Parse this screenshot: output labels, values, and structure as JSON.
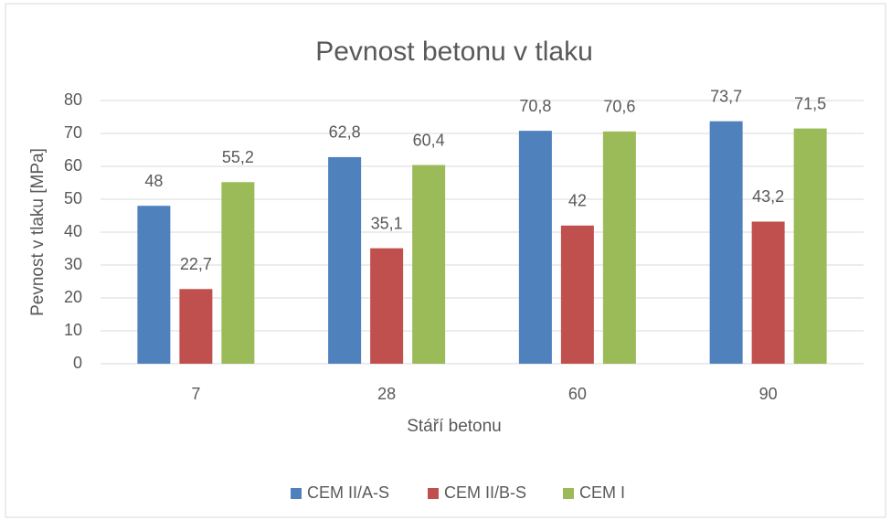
{
  "chart_data": {
    "type": "bar",
    "title": "Pevnost betonu v tlaku",
    "x_label": "Stáří betonu",
    "y_label": "Pevnost v tlaku [MPa]",
    "categories": [
      "7",
      "28",
      "60",
      "90"
    ],
    "series": [
      {
        "name": "CEM II/A-S",
        "color": "#4f81bd",
        "values": [
          48,
          62.8,
          70.8,
          73.7
        ],
        "value_labels": [
          "48",
          "62,8",
          "70,8",
          "73,7"
        ]
      },
      {
        "name": "CEM II/B-S",
        "color": "#c0504d",
        "values": [
          22.7,
          35.1,
          42,
          43.2
        ],
        "value_labels": [
          "22,7",
          "35,1",
          "42",
          "43,2"
        ]
      },
      {
        "name": "CEM I",
        "color": "#9bbb59",
        "values": [
          55.2,
          60.4,
          70.6,
          71.5
        ],
        "value_labels": [
          "55,2",
          "60,4",
          "70,6",
          "71,5"
        ]
      }
    ],
    "ylim": [
      0,
      80
    ],
    "yticks": [
      0,
      10,
      20,
      30,
      40,
      50,
      60,
      70,
      80
    ],
    "grid": true,
    "legend": "bottom"
  }
}
